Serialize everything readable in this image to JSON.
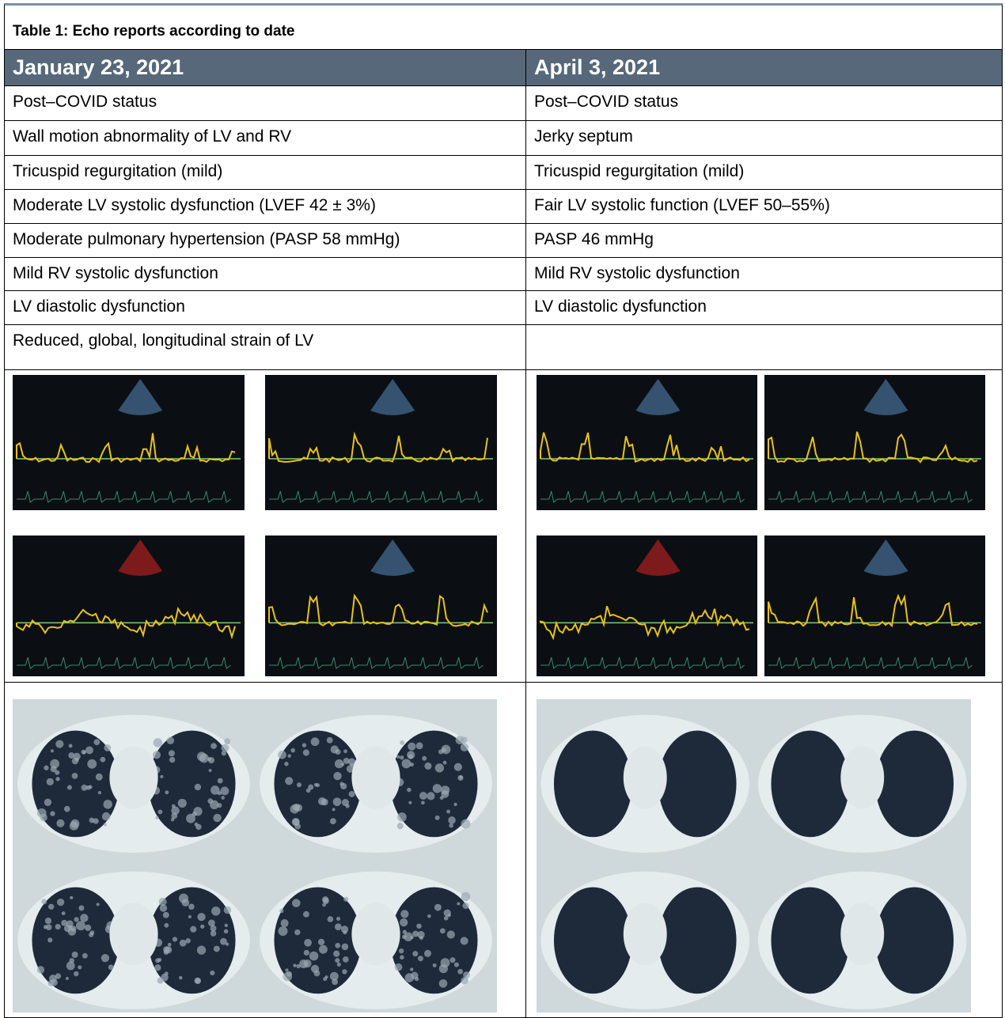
{
  "table": {
    "title": "Table 1: Echo reports according to date",
    "columns": [
      {
        "date": "January 23, 2021",
        "findings": [
          "Post–COVID status",
          "Wall motion abnormality of  LV and RV",
          "Tricuspid regurgitation (mild)",
          "Moderate LV systolic dysfunction (LVEF 42 ± 3%)",
          "Moderate pulmonary hypertension (PASP 58 mmHg)",
          "Mild RV systolic dysfunction",
          "LV diastolic dysfunction",
          "Reduced, global, longitudinal strain of LV"
        ]
      },
      {
        "date": "April 3, 2021",
        "findings": [
          "Post–COVID status",
          "Jerky septum",
          "Tricuspid regurgitation (mild)",
          "Fair LV systolic function (LVEF 50–55%)",
          "PASP 46 mmHg",
          "Mild RV systolic dysfunction",
          "LV diastolic dysfunction"
        ]
      }
    ]
  }
}
